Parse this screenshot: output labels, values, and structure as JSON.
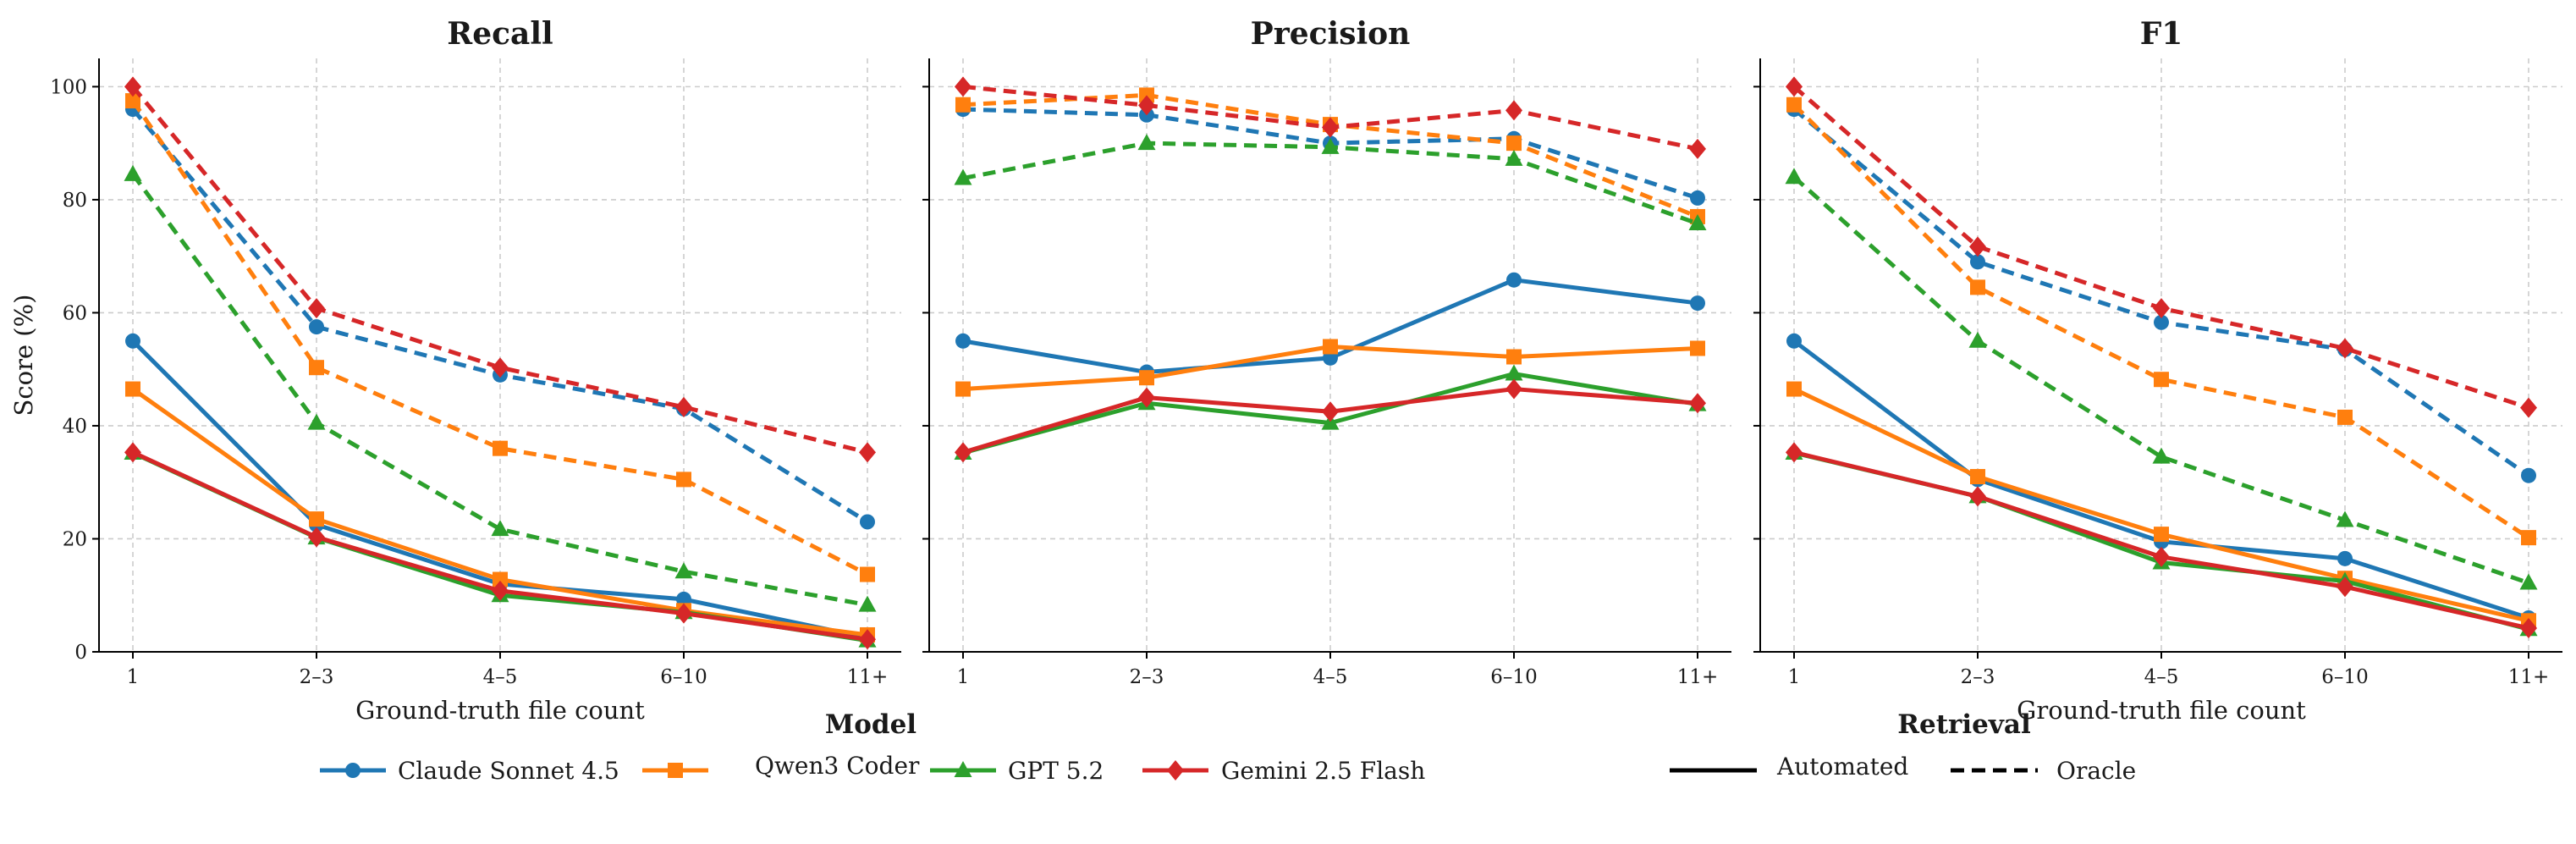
{
  "chart_data": {
    "type": "line",
    "categories": [
      "1",
      "2–3",
      "4–5",
      "6–10",
      "11+"
    ],
    "ylabel": "Score (%)",
    "ylim": [
      0,
      105
    ],
    "yticks": [
      0,
      20,
      40,
      60,
      80,
      100
    ],
    "grid": true,
    "models": [
      {
        "name": "Claude Sonnet 4.5",
        "color": "#1f77b4",
        "marker": "circle"
      },
      {
        "name": "Qwen3 Coder",
        "color": "#ff7f0e",
        "marker": "square"
      },
      {
        "name": "GPT 5.2",
        "color": "#2ca02c",
        "marker": "triangle"
      },
      {
        "name": "Gemini 2.5 Flash",
        "color": "#d62728",
        "marker": "diamond"
      }
    ],
    "retrieval": [
      {
        "name": "Automated",
        "style": "solid"
      },
      {
        "name": "Oracle",
        "style": "dashed"
      }
    ],
    "legend": {
      "model_title": "Model",
      "retrieval_title": "Retrieval",
      "placement": "bottom"
    },
    "panels": [
      {
        "title": "Recall",
        "xlabel": "Ground-truth file count",
        "show_ylabel": true,
        "series": [
          {
            "model": "Claude Sonnet 4.5",
            "retrieval": "Automated",
            "values": [
              55.0,
              22.5,
              12.0,
              9.3,
              2.5
            ]
          },
          {
            "model": "Qwen3 Coder",
            "retrieval": "Automated",
            "values": [
              46.5,
              23.5,
              12.8,
              7.3,
              3.0
            ]
          },
          {
            "model": "GPT 5.2",
            "retrieval": "Automated",
            "values": [
              35.2,
              20.2,
              10.0,
              7.0,
              2.0
            ]
          },
          {
            "model": "Gemini 2.5 Flash",
            "retrieval": "Automated",
            "values": [
              35.3,
              20.3,
              10.8,
              6.8,
              2.2
            ]
          },
          {
            "model": "Claude Sonnet 4.5",
            "retrieval": "Oracle",
            "values": [
              96.0,
              57.5,
              49.0,
              43.0,
              23.0
            ]
          },
          {
            "model": "Qwen3 Coder",
            "retrieval": "Oracle",
            "values": [
              97.5,
              50.3,
              36.0,
              30.5,
              13.7
            ]
          },
          {
            "model": "GPT 5.2",
            "retrieval": "Oracle",
            "values": [
              84.5,
              40.5,
              21.7,
              14.2,
              8.3
            ]
          },
          {
            "model": "Gemini 2.5 Flash",
            "retrieval": "Oracle",
            "values": [
              100.0,
              60.8,
              50.3,
              43.3,
              35.3
            ]
          }
        ]
      },
      {
        "title": "Precision",
        "xlabel": "",
        "show_ylabel": false,
        "series": [
          {
            "model": "Claude Sonnet 4.5",
            "retrieval": "Automated",
            "values": [
              55.0,
              49.5,
              52.0,
              65.8,
              61.7
            ]
          },
          {
            "model": "Qwen3 Coder",
            "retrieval": "Automated",
            "values": [
              46.5,
              48.5,
              54.0,
              52.2,
              53.7
            ]
          },
          {
            "model": "GPT 5.2",
            "retrieval": "Automated",
            "values": [
              35.2,
              44.0,
              40.5,
              49.2,
              43.8
            ]
          },
          {
            "model": "Gemini 2.5 Flash",
            "retrieval": "Automated",
            "values": [
              35.3,
              45.0,
              42.5,
              46.5,
              44.0
            ]
          },
          {
            "model": "Claude Sonnet 4.5",
            "retrieval": "Oracle",
            "values": [
              96.0,
              95.0,
              90.0,
              90.8,
              80.3
            ]
          },
          {
            "model": "Qwen3 Coder",
            "retrieval": "Oracle",
            "values": [
              96.8,
              98.5,
              93.3,
              90.0,
              77.0
            ]
          },
          {
            "model": "GPT 5.2",
            "retrieval": "Oracle",
            "values": [
              83.8,
              90.0,
              89.3,
              87.2,
              75.8
            ]
          },
          {
            "model": "Gemini 2.5 Flash",
            "retrieval": "Oracle",
            "values": [
              100.0,
              96.7,
              92.8,
              95.8,
              89.0
            ]
          }
        ]
      },
      {
        "title": "F1",
        "xlabel": "Ground-truth file count",
        "show_ylabel": false,
        "series": [
          {
            "model": "Claude Sonnet 4.5",
            "retrieval": "Automated",
            "values": [
              55.0,
              30.5,
              19.5,
              16.5,
              6.0
            ]
          },
          {
            "model": "Qwen3 Coder",
            "retrieval": "Automated",
            "values": [
              46.5,
              31.0,
              20.8,
              13.0,
              5.5
            ]
          },
          {
            "model": "GPT 5.2",
            "retrieval": "Automated",
            "values": [
              35.2,
              27.5,
              15.8,
              12.5,
              4.0
            ]
          },
          {
            "model": "Gemini 2.5 Flash",
            "retrieval": "Automated",
            "values": [
              35.3,
              27.5,
              16.8,
              11.5,
              4.2
            ]
          },
          {
            "model": "Claude Sonnet 4.5",
            "retrieval": "Oracle",
            "values": [
              96.0,
              69.0,
              58.3,
              53.5,
              31.2
            ]
          },
          {
            "model": "Qwen3 Coder",
            "retrieval": "Oracle",
            "values": [
              96.8,
              64.5,
              48.2,
              41.5,
              20.2
            ]
          },
          {
            "model": "GPT 5.2",
            "retrieval": "Oracle",
            "values": [
              84.0,
              55.0,
              34.5,
              23.3,
              12.2
            ]
          },
          {
            "model": "Gemini 2.5 Flash",
            "retrieval": "Oracle",
            "values": [
              100.0,
              71.7,
              60.8,
              53.7,
              43.2
            ]
          }
        ]
      }
    ]
  }
}
